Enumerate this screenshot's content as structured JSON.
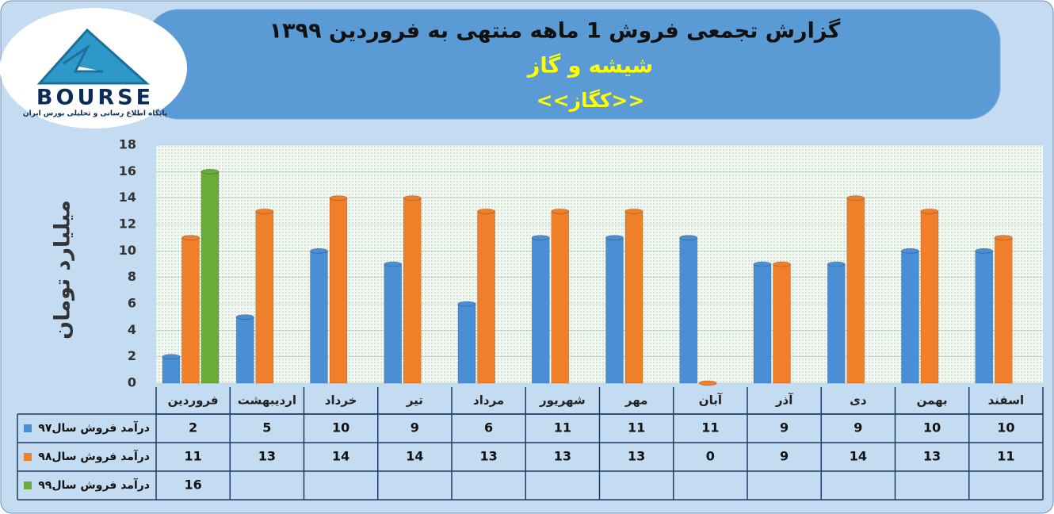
{
  "chart_data": {
    "type": "bar",
    "title": "گزارش تجمعی فروش  1 ماهه منتهی به فروردین ۱۳۹۹",
    "subtitle": "شیشه و گاز",
    "symbol": "<<کگاز>>",
    "logo": {
      "name": "BOURSE",
      "tagline": "پایگاه اطلاع رسانی و تحلیلی بورس ایران"
    },
    "y_label": "میلیارد تومان",
    "categories": [
      "فروردین",
      "اردیبهشت",
      "خرداد",
      "تیر",
      "مرداد",
      "شهریور",
      "مهر",
      "آبان",
      "آذر",
      "دی",
      "بهمن",
      "اسفند"
    ],
    "series": [
      {
        "name": "درآمد فروش سال۹۷",
        "color": "#4a8fd6",
        "values": [
          2,
          5,
          10,
          9,
          6,
          11,
          11,
          11,
          9,
          9,
          10,
          10
        ]
      },
      {
        "name": "درآمد فروش سال۹۸",
        "color": "#f07f2a",
        "values": [
          11,
          13,
          14,
          14,
          13,
          13,
          13,
          0,
          9,
          14,
          13,
          11
        ]
      },
      {
        "name": "درآمد فروش سال۹۹",
        "color": "#6aab3a",
        "values": [
          16,
          null,
          null,
          null,
          null,
          null,
          null,
          null,
          null,
          null,
          null,
          null
        ]
      }
    ],
    "ylim": [
      0,
      18
    ],
    "yticks": [
      0,
      2,
      4,
      6,
      8,
      10,
      12,
      14,
      16,
      18
    ],
    "grid": true,
    "data_table": true
  }
}
